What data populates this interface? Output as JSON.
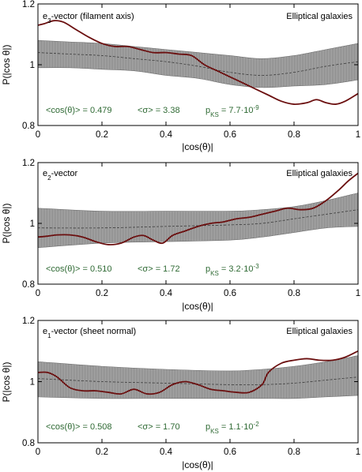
{
  "colors": {
    "band": "#8a8a8a",
    "band_edge": "#6f6f6f",
    "median": "#3c3c3c",
    "data_line": "#6b0f0f",
    "stats_text": "#2f6a34",
    "axis": "#000000"
  },
  "chart_data": [
    {
      "type": "line",
      "vector_base": "e",
      "vector_sub": "3",
      "vector_rest": "-vector  (filament axis)",
      "galaxy_label": "Elliptical galaxies",
      "xlabel": "|cos(θ)|",
      "ylabel": "P(|cos θ|)",
      "xlim": [
        0,
        1
      ],
      "ylim": [
        0.8,
        1.2
      ],
      "x_ticks": [
        "0",
        "0.2",
        "0.4",
        "0.6",
        "0.8",
        "1"
      ],
      "y_ticks": [
        "0.8",
        "1",
        "1.2"
      ],
      "stat_mean": "<cos(θ)> = 0.479",
      "stat_sigma": "<σ> = 3.38",
      "stat_pks_base": "p",
      "stat_pks_sub": "KS",
      "stat_pks_val": " = 7.7·10",
      "stat_pks_exp": "-9",
      "grid": false,
      "series": [
        {
          "values": [
            [
              0,
              1.13
            ],
            [
              0.02,
              1.135
            ],
            [
              0.05,
              1.145
            ],
            [
              0.08,
              1.14
            ],
            [
              0.12,
              1.115
            ],
            [
              0.16,
              1.09
            ],
            [
              0.2,
              1.07
            ],
            [
              0.24,
              1.06
            ],
            [
              0.28,
              1.06
            ],
            [
              0.32,
              1.05
            ],
            [
              0.36,
              1.04
            ],
            [
              0.4,
              1.04
            ],
            [
              0.44,
              1.035
            ],
            [
              0.48,
              1.03
            ],
            [
              0.52,
              1.0
            ],
            [
              0.56,
              0.98
            ],
            [
              0.6,
              0.96
            ],
            [
              0.64,
              0.94
            ],
            [
              0.68,
              0.92
            ],
            [
              0.72,
              0.9
            ],
            [
              0.76,
              0.88
            ],
            [
              0.8,
              0.87
            ],
            [
              0.84,
              0.875
            ],
            [
              0.87,
              0.885
            ],
            [
              0.9,
              0.875
            ],
            [
              0.93,
              0.87
            ],
            [
              0.96,
              0.88
            ],
            [
              1.0,
              0.905
            ]
          ]
        },
        {
          "values": [
            [
              0,
              1.04
            ],
            [
              0.1,
              1.035
            ],
            [
              0.2,
              1.03
            ],
            [
              0.3,
              1.02
            ],
            [
              0.4,
              1.01
            ],
            [
              0.5,
              0.995
            ],
            [
              0.6,
              0.975
            ],
            [
              0.7,
              0.965
            ],
            [
              0.8,
              0.975
            ],
            [
              0.9,
              0.995
            ],
            [
              1.0,
              1.01
            ]
          ]
        }
      ],
      "band_upper": [
        [
          0,
          1.08
        ],
        [
          0.1,
          1.075
        ],
        [
          0.2,
          1.07
        ],
        [
          0.3,
          1.06
        ],
        [
          0.4,
          1.05
        ],
        [
          0.5,
          1.04
        ],
        [
          0.6,
          1.03
        ],
        [
          0.7,
          1.02
        ],
        [
          0.8,
          1.03
        ],
        [
          0.9,
          1.05
        ],
        [
          1.0,
          1.07
        ]
      ],
      "band_lower": [
        [
          0,
          0.99
        ],
        [
          0.1,
          0.99
        ],
        [
          0.2,
          0.985
        ],
        [
          0.3,
          0.98
        ],
        [
          0.4,
          0.965
        ],
        [
          0.5,
          0.955
        ],
        [
          0.6,
          0.935
        ],
        [
          0.7,
          0.925
        ],
        [
          0.8,
          0.93
        ],
        [
          0.9,
          0.935
        ],
        [
          1.0,
          0.95
        ]
      ]
    },
    {
      "type": "line",
      "vector_base": "e",
      "vector_sub": "2",
      "vector_rest": "-vector",
      "galaxy_label": "Elliptical galaxies",
      "xlabel": "|cos(θ)|",
      "ylabel": "P(|cos θ|)",
      "xlim": [
        0,
        1
      ],
      "ylim": [
        0.8,
        1.2
      ],
      "x_ticks": [
        "0",
        "0.2",
        "0.4",
        "0.6",
        "0.8",
        "1"
      ],
      "y_ticks": [
        "0.8",
        "1",
        "1.2"
      ],
      "stat_mean": "<cos(θ)> = 0.510",
      "stat_sigma": "<σ> = 1.72",
      "stat_pks_base": "p",
      "stat_pks_sub": "KS",
      "stat_pks_val": " = 3.2·10",
      "stat_pks_exp": "-3",
      "grid": false,
      "series": [
        {
          "values": [
            [
              0,
              0.955
            ],
            [
              0.03,
              0.958
            ],
            [
              0.06,
              0.962
            ],
            [
              0.1,
              0.962
            ],
            [
              0.14,
              0.955
            ],
            [
              0.18,
              0.94
            ],
            [
              0.22,
              0.93
            ],
            [
              0.26,
              0.935
            ],
            [
              0.3,
              0.955
            ],
            [
              0.33,
              0.96
            ],
            [
              0.36,
              0.945
            ],
            [
              0.39,
              0.935
            ],
            [
              0.42,
              0.96
            ],
            [
              0.46,
              0.975
            ],
            [
              0.5,
              0.99
            ],
            [
              0.54,
              1.0
            ],
            [
              0.58,
              1.005
            ],
            [
              0.62,
              1.015
            ],
            [
              0.66,
              1.02
            ],
            [
              0.7,
              1.03
            ],
            [
              0.74,
              1.04
            ],
            [
              0.78,
              1.05
            ],
            [
              0.82,
              1.045
            ],
            [
              0.86,
              1.05
            ],
            [
              0.9,
              1.075
            ],
            [
              0.94,
              1.11
            ],
            [
              0.97,
              1.14
            ],
            [
              1.0,
              1.165
            ]
          ]
        },
        {
          "values": [
            [
              0,
              0.985
            ],
            [
              0.2,
              0.985
            ],
            [
              0.4,
              0.99
            ],
            [
              0.6,
              0.995
            ],
            [
              0.7,
              1.0
            ],
            [
              0.8,
              1.015
            ],
            [
              0.9,
              1.03
            ],
            [
              1.0,
              1.045
            ]
          ]
        }
      ],
      "band_upper": [
        [
          0,
          1.05
        ],
        [
          0.2,
          1.04
        ],
        [
          0.4,
          1.04
        ],
        [
          0.6,
          1.04
        ],
        [
          0.7,
          1.045
        ],
        [
          0.8,
          1.055
        ],
        [
          0.9,
          1.075
        ],
        [
          1.0,
          1.1
        ]
      ],
      "band_lower": [
        [
          0,
          0.92
        ],
        [
          0.2,
          0.935
        ],
        [
          0.4,
          0.94
        ],
        [
          0.6,
          0.945
        ],
        [
          0.7,
          0.955
        ],
        [
          0.8,
          0.97
        ],
        [
          0.9,
          0.985
        ],
        [
          1.0,
          0.99
        ]
      ]
    },
    {
      "type": "line",
      "vector_base": "e",
      "vector_sub": "1",
      "vector_rest": "-vector  (sheet normal)",
      "galaxy_label": "Elliptical galaxies",
      "xlabel": "|cos(θ)|",
      "ylabel": "P(|cos θ|)",
      "xlim": [
        0,
        1
      ],
      "ylim": [
        0.8,
        1.2
      ],
      "x_ticks": [
        "0",
        "0.2",
        "0.4",
        "0.6",
        "0.8",
        "1"
      ],
      "y_ticks": [
        "0.8",
        "1",
        "1.2"
      ],
      "stat_mean": "<cos(θ)> = 0.508",
      "stat_sigma": "<σ> = 1.70",
      "stat_pks_base": "p",
      "stat_pks_sub": "KS",
      "stat_pks_val": " = 1.1·10",
      "stat_pks_exp": "-2",
      "grid": false,
      "series": [
        {
          "values": [
            [
              0,
              1.03
            ],
            [
              0.03,
              1.03
            ],
            [
              0.06,
              1.015
            ],
            [
              0.1,
              0.98
            ],
            [
              0.14,
              0.97
            ],
            [
              0.18,
              0.97
            ],
            [
              0.22,
              0.965
            ],
            [
              0.26,
              0.96
            ],
            [
              0.3,
              0.975
            ],
            [
              0.34,
              0.96
            ],
            [
              0.38,
              0.965
            ],
            [
              0.42,
              0.99
            ],
            [
              0.46,
              1.0
            ],
            [
              0.5,
              0.99
            ],
            [
              0.54,
              0.975
            ],
            [
              0.58,
              0.97
            ],
            [
              0.62,
              0.965
            ],
            [
              0.66,
              0.965
            ],
            [
              0.7,
              0.99
            ],
            [
              0.72,
              1.03
            ],
            [
              0.76,
              1.06
            ],
            [
              0.8,
              1.07
            ],
            [
              0.84,
              1.075
            ],
            [
              0.88,
              1.07
            ],
            [
              0.92,
              1.07
            ],
            [
              0.96,
              1.08
            ],
            [
              1.0,
              1.1
            ]
          ]
        },
        {
          "values": [
            [
              0,
              1.01
            ],
            [
              0.2,
              1.0
            ],
            [
              0.4,
              0.995
            ],
            [
              0.6,
              0.99
            ],
            [
              0.7,
              0.99
            ],
            [
              0.8,
              0.995
            ],
            [
              0.9,
              1.005
            ],
            [
              1.0,
              1.015
            ]
          ]
        }
      ],
      "band_upper": [
        [
          0,
          1.065
        ],
        [
          0.2,
          1.05
        ],
        [
          0.4,
          1.04
        ],
        [
          0.6,
          1.035
        ],
        [
          0.7,
          1.04
        ],
        [
          0.8,
          1.05
        ],
        [
          0.9,
          1.065
        ],
        [
          1.0,
          1.085
        ]
      ],
      "band_lower": [
        [
          0,
          0.95
        ],
        [
          0.2,
          0.945
        ],
        [
          0.4,
          0.945
        ],
        [
          0.6,
          0.945
        ],
        [
          0.7,
          0.945
        ],
        [
          0.8,
          0.945
        ],
        [
          0.9,
          0.95
        ],
        [
          1.0,
          0.955
        ]
      ]
    }
  ]
}
